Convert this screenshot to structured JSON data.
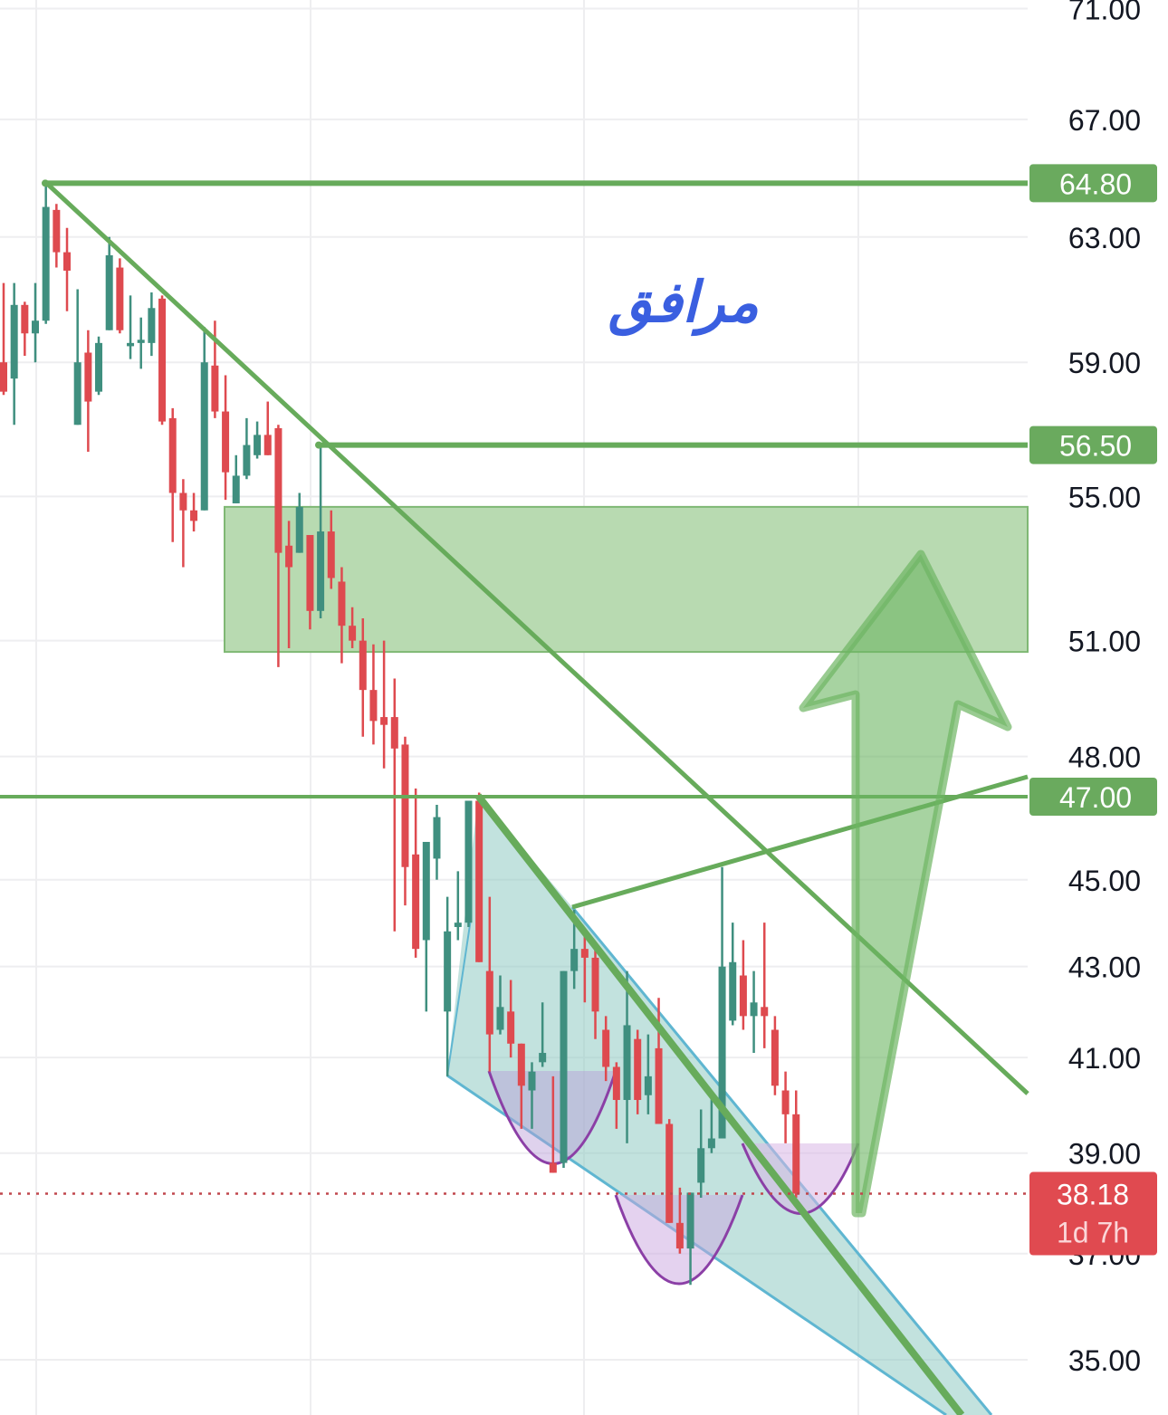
{
  "chart_data": {
    "type": "candlestick",
    "title": "",
    "annotation_text": "مرافق",
    "y_scale": "log",
    "ylim": [
      33.8,
      71.3
    ],
    "y_ticks": [
      "71.00",
      "67.00",
      "63.00",
      "59.00",
      "55.00",
      "51.00",
      "48.00",
      "45.00",
      "43.00",
      "41.00",
      "39.00",
      "37.00",
      "35.00"
    ],
    "grid": true,
    "colors": {
      "up": "#3f8f7f",
      "down": "#de4a4f",
      "lines": "#67ab5b",
      "zone": "#b4d8ad",
      "wedge": "#bde1dc",
      "wedge_edge": "#5fb6d1",
      "cup": "#8b3fa6",
      "annotation": "#3a5fe0"
    },
    "candles_ohlc": [
      [
        59.0,
        61.5,
        58.0,
        58.1
      ],
      [
        58.5,
        61.5,
        57.1,
        60.8
      ],
      [
        60.8,
        60.9,
        59.2,
        59.9
      ],
      [
        59.9,
        61.5,
        59.0,
        60.3
      ],
      [
        60.3,
        64.8,
        60.2,
        64.0
      ],
      [
        63.9,
        64.1,
        62.0,
        62.5
      ],
      [
        62.5,
        63.3,
        60.6,
        61.9
      ],
      [
        57.1,
        61.3,
        57.1,
        59.0
      ],
      [
        59.3,
        60.0,
        56.3,
        57.8
      ],
      [
        58.1,
        59.8,
        58.0,
        59.6
      ],
      [
        60.0,
        63.0,
        60.0,
        62.4
      ],
      [
        62.0,
        62.3,
        59.9,
        60.0
      ],
      [
        59.5,
        61.1,
        59.1,
        59.6
      ],
      [
        59.6,
        60.4,
        58.8,
        59.7
      ],
      [
        59.6,
        61.2,
        59.2,
        60.7
      ],
      [
        61.0,
        61.1,
        57.1,
        57.2
      ],
      [
        57.3,
        57.6,
        53.7,
        55.1
      ],
      [
        55.1,
        55.5,
        53.0,
        54.6
      ],
      [
        54.6,
        55.1,
        54.0,
        54.3
      ],
      [
        54.6,
        60.1,
        54.6,
        59.0
      ],
      [
        58.9,
        60.3,
        57.3,
        57.5
      ],
      [
        57.5,
        58.6,
        54.9,
        55.7
      ],
      [
        54.8,
        56.2,
        54.8,
        55.6
      ],
      [
        55.6,
        57.3,
        55.5,
        56.5
      ],
      [
        56.2,
        57.2,
        56.1,
        56.8
      ],
      [
        56.8,
        57.8,
        56.2,
        56.2
      ],
      [
        57.0,
        57.1,
        50.3,
        53.4
      ],
      [
        53.6,
        54.3,
        50.8,
        53.0
      ],
      [
        53.4,
        55.1,
        53.4,
        54.7
      ],
      [
        53.9,
        53.9,
        51.3,
        51.8
      ],
      [
        51.8,
        56.5,
        51.6,
        54.0
      ],
      [
        54.0,
        54.6,
        52.4,
        52.7
      ],
      [
        52.6,
        53.0,
        50.4,
        51.4
      ],
      [
        51.4,
        51.9,
        50.8,
        51.0
      ],
      [
        51.0,
        51.6,
        48.5,
        49.7
      ],
      [
        49.7,
        50.9,
        48.3,
        48.9
      ],
      [
        49.0,
        51.0,
        47.7,
        48.8
      ],
      [
        49.0,
        50.0,
        43.8,
        48.2
      ],
      [
        48.3,
        48.5,
        44.4,
        45.3
      ],
      [
        45.6,
        47.2,
        43.2,
        43.4
      ],
      [
        43.6,
        45.9,
        42.0,
        45.9
      ],
      [
        45.5,
        46.8,
        45.0,
        46.5
      ],
      [
        42.0,
        44.6,
        40.6,
        43.8
      ],
      [
        43.9,
        45.2,
        43.6,
        44.0
      ],
      [
        44.0,
        46.9,
        43.9,
        46.9
      ],
      [
        46.9,
        47.1,
        43.1,
        43.1
      ],
      [
        42.9,
        44.6,
        40.7,
        41.5
      ],
      [
        41.6,
        42.8,
        41.5,
        42.1
      ],
      [
        42.0,
        42.7,
        41.0,
        41.3
      ],
      [
        41.3,
        41.3,
        39.5,
        40.4
      ],
      [
        40.3,
        40.9,
        39.5,
        40.7
      ],
      [
        40.9,
        42.2,
        40.8,
        41.1
      ],
      [
        38.8,
        40.6,
        38.6,
        38.6
      ],
      [
        38.8,
        42.9,
        38.7,
        42.9
      ],
      [
        42.9,
        44.3,
        42.5,
        43.4
      ],
      [
        43.4,
        43.8,
        42.2,
        43.2
      ],
      [
        43.2,
        43.4,
        41.4,
        42.0
      ],
      [
        41.6,
        41.9,
        40.5,
        40.8
      ],
      [
        40.8,
        40.9,
        39.5,
        40.1
      ],
      [
        40.1,
        42.9,
        39.2,
        41.7
      ],
      [
        41.4,
        41.6,
        39.8,
        40.1
      ],
      [
        40.2,
        41.5,
        39.8,
        40.6
      ],
      [
        41.2,
        42.3,
        39.6,
        39.6
      ],
      [
        39.6,
        39.7,
        37.6,
        37.6
      ],
      [
        37.6,
        38.3,
        37.0,
        37.1
      ],
      [
        37.1,
        38.2,
        36.4,
        38.2
      ],
      [
        38.4,
        39.9,
        38.1,
        39.1
      ],
      [
        39.1,
        40.3,
        39.0,
        39.3
      ],
      [
        39.3,
        45.3,
        39.3,
        43.0
      ],
      [
        41.8,
        44.0,
        41.7,
        43.1
      ],
      [
        42.8,
        43.6,
        41.6,
        41.9
      ],
      [
        41.9,
        42.9,
        41.1,
        42.2
      ],
      [
        42.1,
        44.0,
        41.2,
        41.9
      ],
      [
        41.6,
        41.9,
        40.2,
        40.4
      ],
      [
        40.3,
        40.7,
        39.2,
        39.8
      ],
      [
        39.8,
        40.3,
        38.1,
        38.18
      ]
    ],
    "horizontal_levels": [
      {
        "value": 64.8,
        "label": "64.80"
      },
      {
        "value": 56.5,
        "label": "56.50"
      },
      {
        "value": 47.0,
        "label": "47.00"
      }
    ],
    "demand_zone": [
      50.7,
      54.7
    ],
    "last_price": {
      "value": 38.18,
      "label": "38.18",
      "countdown": "1d 7h"
    }
  }
}
